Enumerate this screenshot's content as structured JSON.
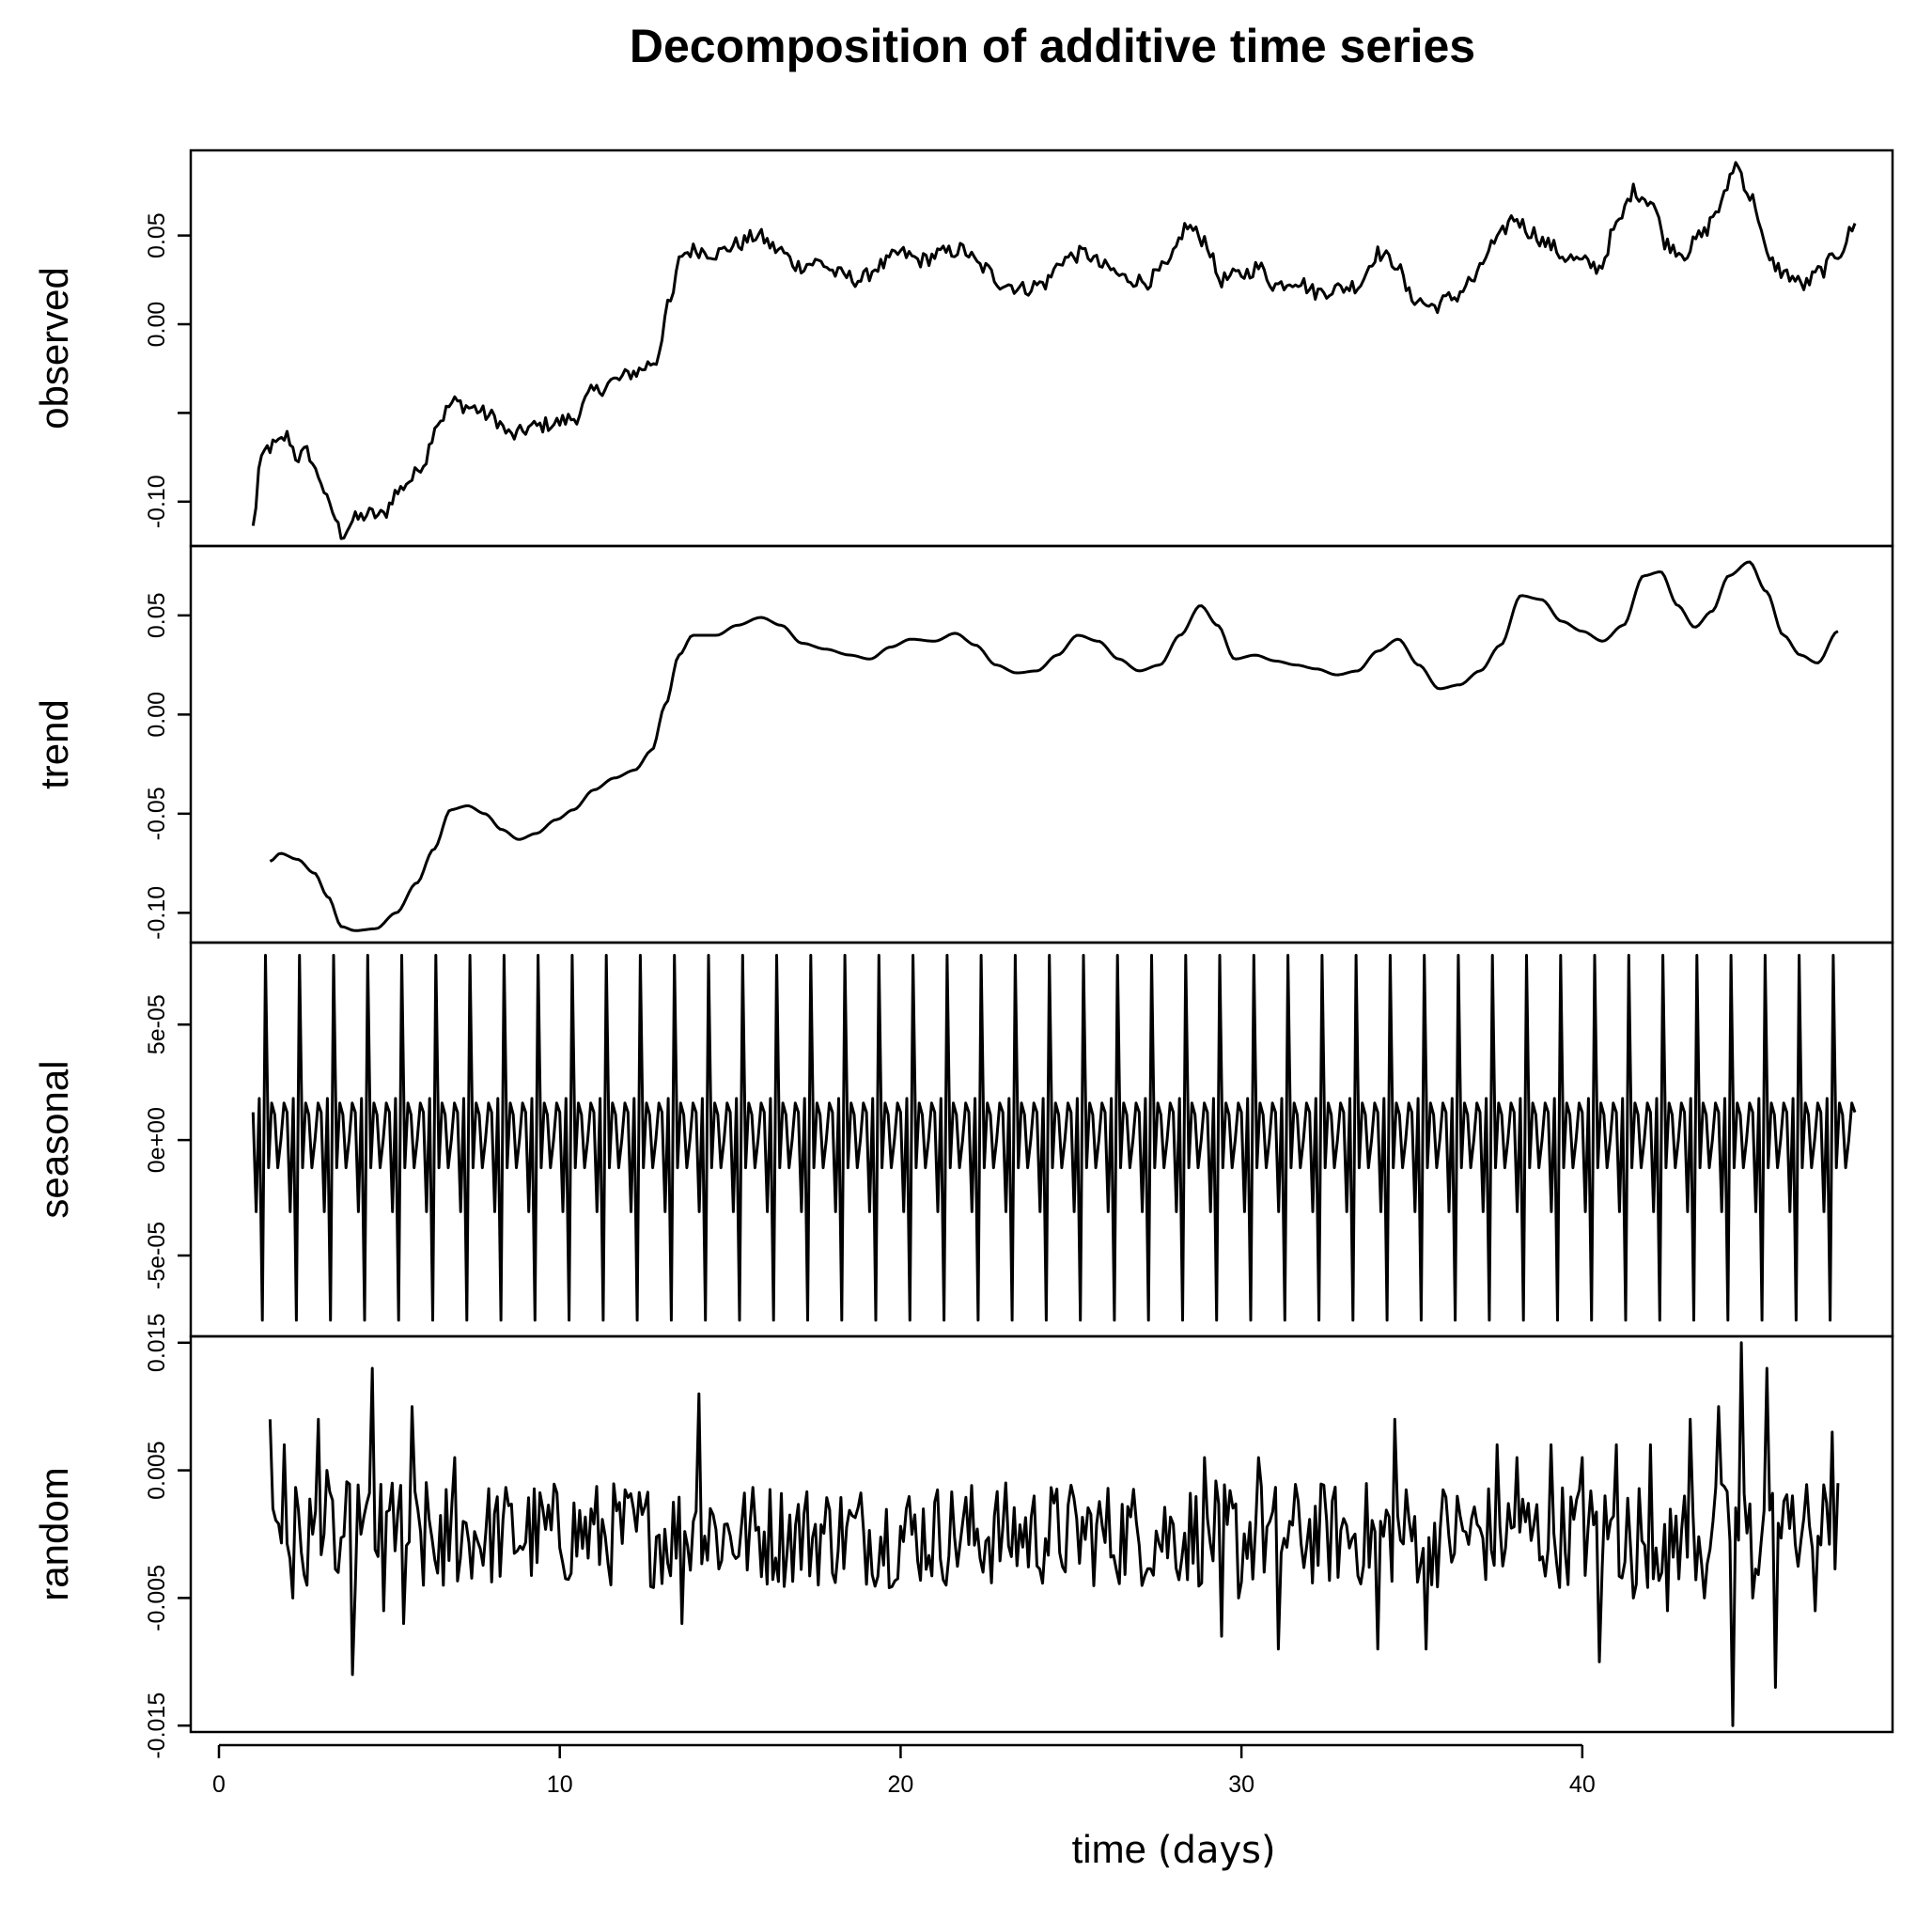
{
  "chart_data": {
    "type": "line",
    "title": "Decomposition of additive time series",
    "xlabel": "time",
    "xlabel_unit": "(days)",
    "x_range": [
      0,
      48
    ],
    "x_ticks": [
      0,
      10,
      20,
      30,
      40
    ],
    "x_tick_labels": [
      "0",
      "10",
      "20",
      "30",
      "40"
    ],
    "grid": false,
    "panels": [
      {
        "name": "observed",
        "ylabel": "observed",
        "ylim": [
          -0.125,
          0.098
        ],
        "y_ticks": [
          -0.1,
          -0.05,
          0.0,
          0.05
        ],
        "y_tick_labels": [
          "-0.10",
          "",
          "0.00",
          "0.05"
        ],
        "x_start": 1.0,
        "x_end": 48.0,
        "anchors": [
          [
            1.0,
            -0.115
          ],
          [
            1.2,
            -0.08
          ],
          [
            1.4,
            -0.07
          ],
          [
            1.7,
            -0.068
          ],
          [
            2.0,
            -0.063
          ],
          [
            2.3,
            -0.075
          ],
          [
            2.6,
            -0.072
          ],
          [
            2.9,
            -0.085
          ],
          [
            3.3,
            -0.105
          ],
          [
            3.6,
            -0.118
          ],
          [
            4.0,
            -0.11
          ],
          [
            4.4,
            -0.107
          ],
          [
            4.8,
            -0.108
          ],
          [
            5.2,
            -0.095
          ],
          [
            5.6,
            -0.088
          ],
          [
            6.0,
            -0.078
          ],
          [
            6.4,
            -0.055
          ],
          [
            6.9,
            -0.044
          ],
          [
            7.4,
            -0.047
          ],
          [
            8.0,
            -0.052
          ],
          [
            8.6,
            -0.063
          ],
          [
            9.2,
            -0.058
          ],
          [
            9.8,
            -0.056
          ],
          [
            10.4,
            -0.053
          ],
          [
            11.0,
            -0.038
          ],
          [
            11.6,
            -0.032
          ],
          [
            12.2,
            -0.027
          ],
          [
            12.8,
            -0.021
          ],
          [
            13.2,
            0.01
          ],
          [
            13.6,
            0.04
          ],
          [
            14.0,
            0.042
          ],
          [
            14.6,
            0.04
          ],
          [
            15.2,
            0.045
          ],
          [
            15.8,
            0.05
          ],
          [
            16.4,
            0.042
          ],
          [
            17.0,
            0.033
          ],
          [
            17.6,
            0.035
          ],
          [
            18.2,
            0.028
          ],
          [
            18.8,
            0.025
          ],
          [
            19.4,
            0.033
          ],
          [
            20.0,
            0.04
          ],
          [
            20.6,
            0.036
          ],
          [
            21.2,
            0.04
          ],
          [
            21.8,
            0.042
          ],
          [
            22.4,
            0.032
          ],
          [
            23.0,
            0.023
          ],
          [
            23.6,
            0.02
          ],
          [
            24.2,
            0.023
          ],
          [
            24.8,
            0.037
          ],
          [
            25.4,
            0.04
          ],
          [
            26.0,
            0.032
          ],
          [
            26.6,
            0.026
          ],
          [
            27.2,
            0.024
          ],
          [
            27.8,
            0.032
          ],
          [
            28.4,
            0.055
          ],
          [
            28.9,
            0.048
          ],
          [
            29.4,
            0.025
          ],
          [
            30.0,
            0.028
          ],
          [
            30.5,
            0.032
          ],
          [
            31.0,
            0.022
          ],
          [
            31.6,
            0.025
          ],
          [
            32.2,
            0.018
          ],
          [
            32.8,
            0.02
          ],
          [
            33.4,
            0.022
          ],
          [
            34.0,
            0.04
          ],
          [
            34.5,
            0.035
          ],
          [
            35.0,
            0.015
          ],
          [
            35.6,
            0.01
          ],
          [
            36.2,
            0.015
          ],
          [
            36.8,
            0.025
          ],
          [
            37.4,
            0.045
          ],
          [
            38.0,
            0.06
          ],
          [
            38.5,
            0.052
          ],
          [
            39.0,
            0.045
          ],
          [
            39.5,
            0.038
          ],
          [
            40.0,
            0.035
          ],
          [
            40.5,
            0.032
          ],
          [
            41.0,
            0.055
          ],
          [
            41.5,
            0.075
          ],
          [
            42.0,
            0.07
          ],
          [
            42.5,
            0.045
          ],
          [
            43.0,
            0.04
          ],
          [
            43.5,
            0.05
          ],
          [
            44.0,
            0.065
          ],
          [
            44.5,
            0.09
          ],
          [
            45.0,
            0.07
          ],
          [
            45.5,
            0.035
          ],
          [
            46.0,
            0.028
          ],
          [
            46.5,
            0.022
          ],
          [
            47.0,
            0.03
          ],
          [
            47.5,
            0.04
          ],
          [
            48.0,
            0.055
          ]
        ],
        "noise": 0.0045
      },
      {
        "name": "trend",
        "ylabel": "trend",
        "ylim": [
          -0.115,
          0.085
        ],
        "y_ticks": [
          -0.1,
          -0.05,
          0.0,
          0.05
        ],
        "y_tick_labels": [
          "-0.10",
          "-0.05",
          "0.00",
          "0.05"
        ],
        "x_start": 1.5,
        "x_end": 47.5,
        "anchors": [
          [
            1.5,
            -0.074
          ],
          [
            1.8,
            -0.07
          ],
          [
            2.3,
            -0.073
          ],
          [
            2.8,
            -0.08
          ],
          [
            3.2,
            -0.092
          ],
          [
            3.6,
            -0.107
          ],
          [
            4.0,
            -0.109
          ],
          [
            4.6,
            -0.108
          ],
          [
            5.2,
            -0.1
          ],
          [
            5.8,
            -0.085
          ],
          [
            6.3,
            -0.068
          ],
          [
            6.8,
            -0.048
          ],
          [
            7.3,
            -0.046
          ],
          [
            7.8,
            -0.05
          ],
          [
            8.3,
            -0.058
          ],
          [
            8.8,
            -0.063
          ],
          [
            9.3,
            -0.06
          ],
          [
            9.9,
            -0.053
          ],
          [
            10.4,
            -0.048
          ],
          [
            11.0,
            -0.038
          ],
          [
            11.6,
            -0.032
          ],
          [
            12.2,
            -0.028
          ],
          [
            12.7,
            -0.018
          ],
          [
            13.1,
            0.005
          ],
          [
            13.5,
            0.03
          ],
          [
            13.9,
            0.04
          ],
          [
            14.6,
            0.04
          ],
          [
            15.2,
            0.045
          ],
          [
            15.9,
            0.049
          ],
          [
            16.5,
            0.045
          ],
          [
            17.1,
            0.036
          ],
          [
            17.8,
            0.033
          ],
          [
            18.5,
            0.03
          ],
          [
            19.1,
            0.028
          ],
          [
            19.7,
            0.034
          ],
          [
            20.3,
            0.038
          ],
          [
            21.0,
            0.037
          ],
          [
            21.6,
            0.041
          ],
          [
            22.2,
            0.035
          ],
          [
            22.8,
            0.025
          ],
          [
            23.4,
            0.021
          ],
          [
            24.0,
            0.022
          ],
          [
            24.6,
            0.03
          ],
          [
            25.2,
            0.04
          ],
          [
            25.8,
            0.037
          ],
          [
            26.4,
            0.028
          ],
          [
            27.0,
            0.022
          ],
          [
            27.6,
            0.025
          ],
          [
            28.2,
            0.04
          ],
          [
            28.8,
            0.055
          ],
          [
            29.3,
            0.045
          ],
          [
            29.8,
            0.028
          ],
          [
            30.4,
            0.03
          ],
          [
            31.0,
            0.027
          ],
          [
            31.6,
            0.025
          ],
          [
            32.2,
            0.023
          ],
          [
            32.8,
            0.02
          ],
          [
            33.4,
            0.022
          ],
          [
            34.0,
            0.032
          ],
          [
            34.6,
            0.038
          ],
          [
            35.2,
            0.025
          ],
          [
            35.8,
            0.013
          ],
          [
            36.4,
            0.015
          ],
          [
            37.0,
            0.022
          ],
          [
            37.6,
            0.035
          ],
          [
            38.2,
            0.06
          ],
          [
            38.8,
            0.058
          ],
          [
            39.4,
            0.047
          ],
          [
            40.0,
            0.042
          ],
          [
            40.6,
            0.037
          ],
          [
            41.2,
            0.045
          ],
          [
            41.8,
            0.07
          ],
          [
            42.3,
            0.072
          ],
          [
            42.8,
            0.055
          ],
          [
            43.3,
            0.044
          ],
          [
            43.8,
            0.052
          ],
          [
            44.3,
            0.07
          ],
          [
            44.9,
            0.077
          ],
          [
            45.4,
            0.062
          ],
          [
            45.9,
            0.04
          ],
          [
            46.4,
            0.03
          ],
          [
            46.9,
            0.026
          ],
          [
            47.5,
            0.042
          ]
        ],
        "noise": 0.0
      },
      {
        "name": "seasonal",
        "ylabel": "seasonal",
        "ylim": [
          -8.5e-05,
          8.55e-05
        ],
        "y_ticks": [
          -5e-05,
          0.0,
          5e-05
        ],
        "y_tick_labels": [
          "-5e-05",
          "0e+00",
          "5e-05"
        ],
        "x_start": 1.0,
        "x_end": 48.0,
        "period_points": [
          0.0,
          1.6e-05,
          1.2e-05,
          -3.1e-05,
          1.8e-05,
          -7.8e-05,
          8e-05,
          -1.2e-05,
          1.6e-05,
          1.1e-05,
          -1.2e-05
        ],
        "phase_offset": 2
      },
      {
        "name": "random",
        "ylabel": "random",
        "ylim": [
          -0.0155,
          0.0155
        ],
        "y_ticks": [
          -0.015,
          -0.005,
          0.005,
          0.015
        ],
        "y_tick_labels": [
          "-0.015",
          "-0.005",
          "0.005",
          "0.015"
        ],
        "x_start": 1.5,
        "x_end": 47.5,
        "spikes": [
          [
            1.5,
            0.009
          ],
          [
            1.6,
            0.002
          ],
          [
            1.9,
            0.007
          ],
          [
            2.2,
            -0.005
          ],
          [
            2.6,
            -0.004
          ],
          [
            2.9,
            0.009
          ],
          [
            3.2,
            0.005
          ],
          [
            3.5,
            -0.003
          ],
          [
            3.9,
            -0.011
          ],
          [
            4.2,
            0.0
          ],
          [
            4.5,
            0.013
          ],
          [
            4.8,
            -0.006
          ],
          [
            5.1,
            0.004
          ],
          [
            5.4,
            -0.007
          ],
          [
            5.7,
            0.01
          ],
          [
            6.0,
            -0.004
          ],
          [
            6.3,
            -0.002
          ],
          [
            6.6,
            -0.004
          ],
          [
            6.9,
            0.006
          ],
          [
            7.2,
            0.001
          ],
          [
            13.6,
            -0.007
          ],
          [
            13.9,
            0.001
          ],
          [
            14.1,
            0.011
          ],
          [
            14.4,
            0.002
          ],
          [
            28.9,
            0.006
          ],
          [
            29.4,
            -0.008
          ],
          [
            29.9,
            -0.005
          ],
          [
            30.5,
            0.006
          ],
          [
            31.1,
            -0.009
          ],
          [
            34.0,
            -0.009
          ],
          [
            34.5,
            0.009
          ],
          [
            35.4,
            -0.009
          ],
          [
            37.5,
            0.007
          ],
          [
            38.1,
            0.006
          ],
          [
            39.1,
            0.007
          ],
          [
            40.0,
            0.006
          ],
          [
            40.5,
            -0.01
          ],
          [
            41.0,
            0.007
          ],
          [
            41.5,
            -0.005
          ],
          [
            42.0,
            0.007
          ],
          [
            42.5,
            -0.006
          ],
          [
            43.2,
            0.009
          ],
          [
            43.6,
            -0.005
          ],
          [
            44.0,
            0.01
          ],
          [
            44.4,
            -0.015
          ],
          [
            44.7,
            0.015
          ],
          [
            45.0,
            -0.005
          ],
          [
            45.4,
            0.013
          ],
          [
            45.7,
            -0.012
          ],
          [
            46.2,
            0.003
          ],
          [
            46.8,
            -0.006
          ],
          [
            47.3,
            0.008
          ],
          [
            47.5,
            0.004
          ]
        ],
        "noise": 0.0042
      }
    ]
  }
}
